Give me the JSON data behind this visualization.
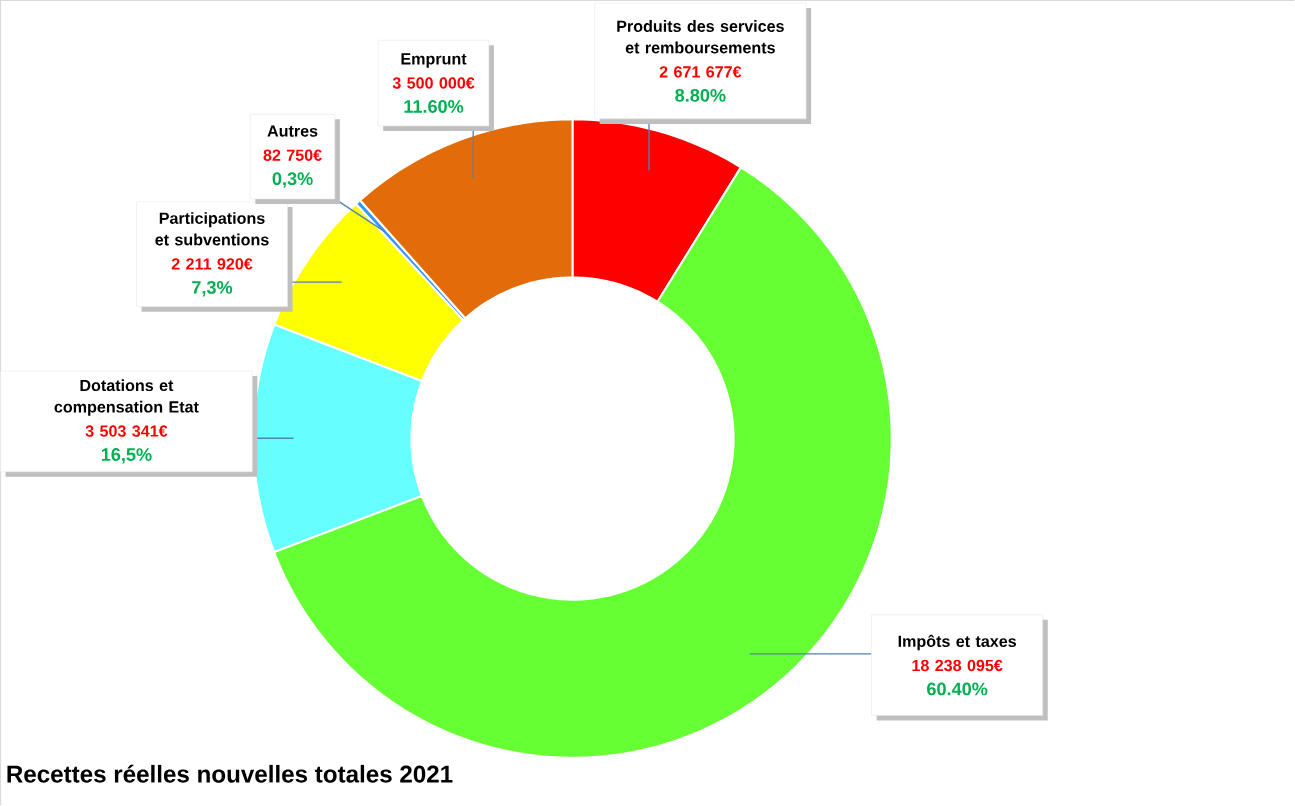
{
  "chart_data": {
    "type": "donut",
    "title": "Recettes réelles nouvelles totales 2021",
    "categories": [
      "Produits des services et remboursements",
      "Impôts et taxes",
      "Dotations et compensation Etat",
      "Participations et subventions",
      "Autres",
      "Emprunt"
    ],
    "values": [
      2671677,
      18238095,
      3503341,
      2211920,
      82750,
      3500000
    ],
    "colors": [
      "#ff0000",
      "#66ff33",
      "#66ffff",
      "#ffff00",
      "#3399ff",
      "#e36c0a"
    ],
    "value_labels": [
      "2 671 677€",
      "18 238 095€",
      "3 503 341€",
      "2 211 920€",
      "82 750€",
      "3 500 000€"
    ],
    "annotations": [
      "8.80%",
      "60.40%",
      "16,5%",
      "7,3%",
      "0,3%",
      "11.60%"
    ]
  }
}
